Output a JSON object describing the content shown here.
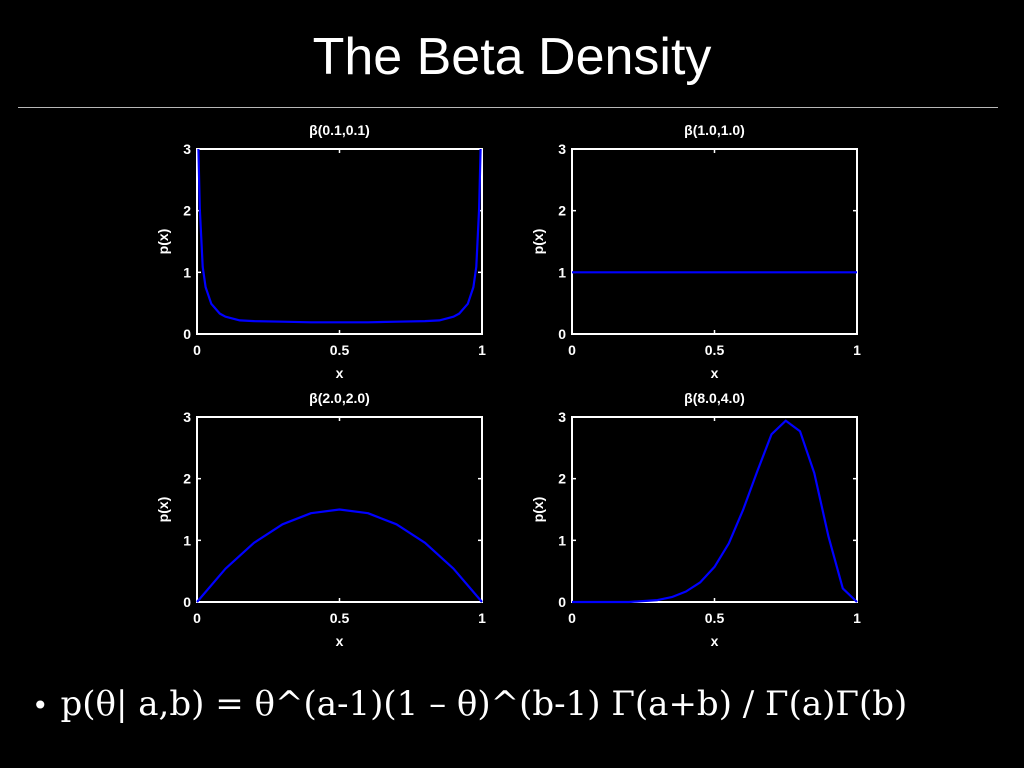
{
  "slide": {
    "title": "The Beta Density",
    "bullet_formula": "p(θ| a,b) = θ^(a-1)(1 – θ)^(b-1) Γ(a+b) / Γ(a)Γ(b)"
  },
  "colors": {
    "background": "#000000",
    "curve": "#0000ff",
    "axes": "#ffffff",
    "text": "#ffffff"
  },
  "chart_data": [
    {
      "type": "line",
      "title": "β(0.1,0.1)",
      "xlabel": "x",
      "ylabel": "p(x)",
      "xlim": [
        0,
        1
      ],
      "ylim": [
        0,
        3
      ],
      "xticks": [
        "0",
        "0.5",
        "1"
      ],
      "yticks": [
        "0",
        "1",
        "2",
        "3"
      ],
      "params": [
        0.1,
        0.1
      ],
      "x": [
        0.005,
        0.01,
        0.02,
        0.03,
        0.05,
        0.08,
        0.1,
        0.15,
        0.2,
        0.3,
        0.4,
        0.5,
        0.6,
        0.7,
        0.8,
        0.85,
        0.9,
        0.92,
        0.95,
        0.97,
        0.98,
        0.99,
        0.995
      ],
      "y": [
        3.0,
        2.03,
        1.09,
        0.76,
        0.49,
        0.33,
        0.28,
        0.22,
        0.21,
        0.2,
        0.19,
        0.19,
        0.19,
        0.2,
        0.21,
        0.22,
        0.28,
        0.33,
        0.49,
        0.76,
        1.09,
        2.03,
        3.0
      ]
    },
    {
      "type": "line",
      "title": "β(1.0,1.0)",
      "xlabel": "x",
      "ylabel": "p(x)",
      "xlim": [
        0,
        1
      ],
      "ylim": [
        0,
        3
      ],
      "xticks": [
        "0",
        "0.5",
        "1"
      ],
      "yticks": [
        "0",
        "1",
        "2",
        "3"
      ],
      "params": [
        1.0,
        1.0
      ],
      "x": [
        0,
        0.25,
        0.5,
        0.75,
        1
      ],
      "y": [
        1,
        1,
        1,
        1,
        1
      ]
    },
    {
      "type": "line",
      "title": "β(2.0,2.0)",
      "xlabel": "x",
      "ylabel": "p(x)",
      "xlim": [
        0,
        1
      ],
      "ylim": [
        0,
        3
      ],
      "xticks": [
        "0",
        "0.5",
        "1"
      ],
      "yticks": [
        "0",
        "1",
        "2",
        "3"
      ],
      "params": [
        2.0,
        2.0
      ],
      "x": [
        0,
        0.1,
        0.2,
        0.3,
        0.4,
        0.5,
        0.6,
        0.7,
        0.8,
        0.9,
        1.0
      ],
      "y": [
        0,
        0.54,
        0.96,
        1.26,
        1.44,
        1.5,
        1.44,
        1.26,
        0.96,
        0.54,
        0
      ]
    },
    {
      "type": "line",
      "title": "β(8.0,4.0)",
      "xlabel": "x",
      "ylabel": "p(x)",
      "xlim": [
        0,
        1
      ],
      "ylim": [
        0,
        3
      ],
      "xticks": [
        "0",
        "0.5",
        "1"
      ],
      "yticks": [
        "0",
        "1",
        "2",
        "3"
      ],
      "params": [
        8.0,
        4.0
      ],
      "x": [
        0,
        0.1,
        0.2,
        0.3,
        0.35,
        0.4,
        0.45,
        0.5,
        0.55,
        0.6,
        0.65,
        0.7,
        0.75,
        0.8,
        0.85,
        0.9,
        0.95,
        1.0
      ],
      "y": [
        0,
        0.0,
        0.0,
        0.03,
        0.08,
        0.17,
        0.32,
        0.57,
        0.95,
        1.49,
        2.12,
        2.72,
        2.94,
        2.77,
        2.09,
        1.06,
        0.22,
        0
      ]
    }
  ]
}
